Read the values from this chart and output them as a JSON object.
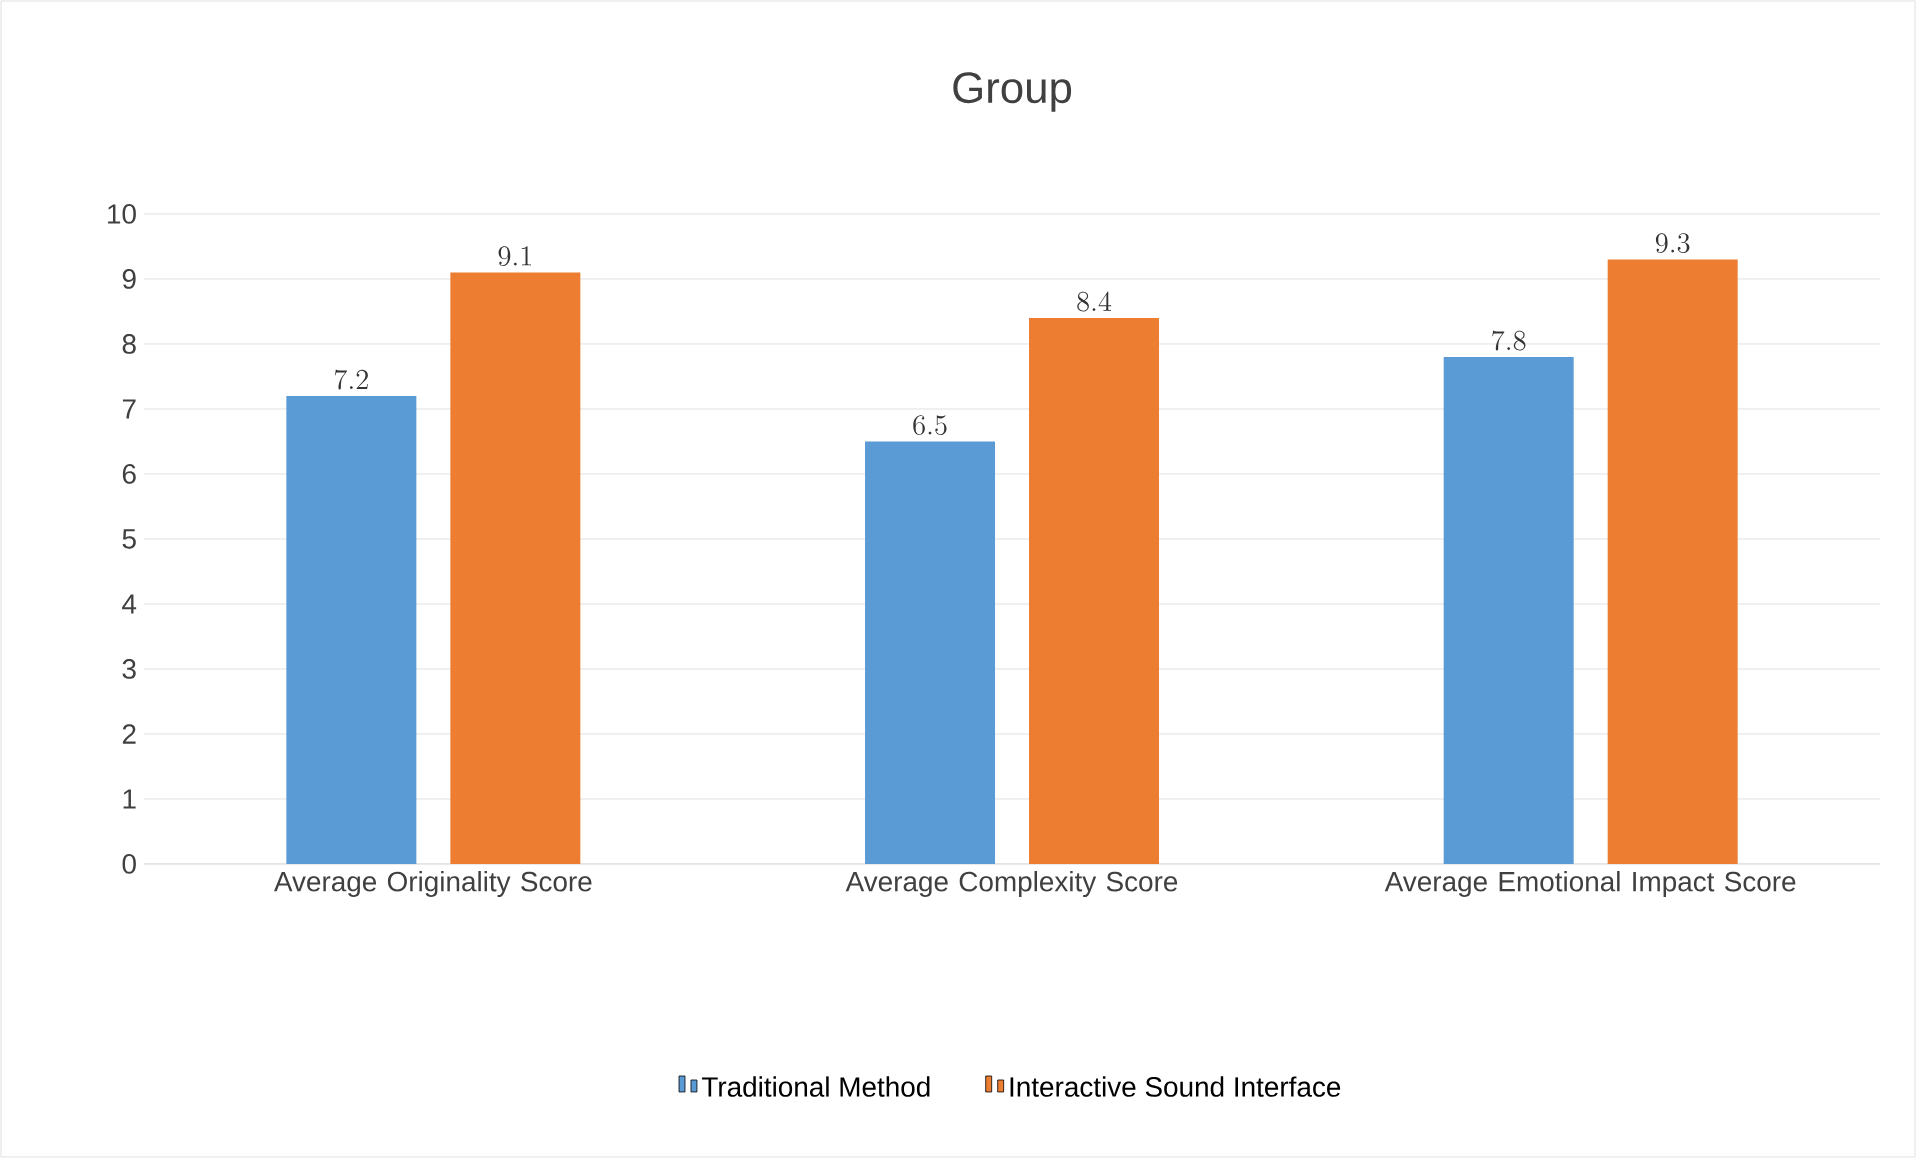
{
  "chart_data": {
    "type": "bar",
    "title": "Group",
    "categories": [
      "Average Originality Score",
      "Average Complexity Score",
      "Average Emotional Impact Score"
    ],
    "series": [
      {
        "name": "Traditional Method",
        "color": "#5b9bd5",
        "values": [
          7.2,
          6.5,
          7.8
        ]
      },
      {
        "name": "Interactive Sound Interface",
        "color": "#ed7d31",
        "values": [
          9.1,
          8.4,
          9.3
        ]
      }
    ],
    "ylim": [
      0,
      10
    ],
    "yticks": [
      0,
      1,
      2,
      3,
      4,
      5,
      6,
      7,
      8,
      9,
      10
    ],
    "grid": "y",
    "legend": "bottom",
    "data_labels": true
  }
}
